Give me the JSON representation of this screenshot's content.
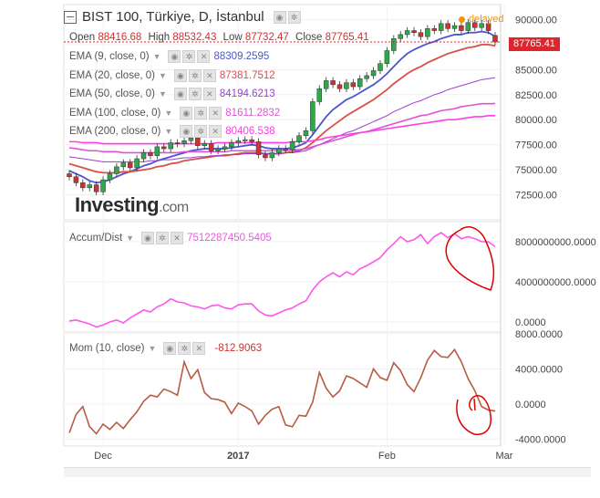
{
  "header": {
    "title": "BIST 100, Türkiye, D, İstanbul",
    "delayed": "delayed",
    "ohlc": {
      "open_label": "Open",
      "open": "88416.68",
      "high_label": "High",
      "high": "88532.43",
      "low_label": "Low",
      "low": "87732.47",
      "close_label": "Close",
      "close": "87765.41"
    },
    "last_price": "87765.41"
  },
  "indicators": {
    "ema": [
      {
        "label": "EMA (9, close, 0)",
        "value": "88309.2595",
        "color": "#4a56d1"
      },
      {
        "label": "EMA (20, close, 0)",
        "value": "87381.7512",
        "color": "#d8504a"
      },
      {
        "label": "EMA (50, close, 0)",
        "value": "84194.6213",
        "color": "#9b3fd0"
      },
      {
        "label": "EMA (100, close, 0)",
        "value": "81611.2832",
        "color": "#e052d8"
      },
      {
        "label": "EMA (200, close, 0)",
        "value": "80406.538",
        "color": "#ff3ce6"
      }
    ],
    "accum": {
      "label": "Accum/Dist",
      "value": "7512287450.5405",
      "color": "#ff55ee"
    },
    "mom": {
      "label": "Mom (10, close)",
      "value": "-812.9063",
      "color": "#b85a44"
    }
  },
  "watermark": {
    "brand": "Investing",
    "suffix": ".com"
  },
  "colors": {
    "up": "#2ea84a",
    "down": "#d0302f",
    "grid": "#eeeeee",
    "annotation": "#dd0000"
  },
  "chart_data": [
    {
      "type": "candlestick",
      "title": "BIST 100, Türkiye, D, İstanbul",
      "x_ticks": [
        "Dec",
        "2017",
        "Feb",
        "Mar"
      ],
      "ylim": [
        70000,
        91500
      ],
      "y_ticks": [
        72500,
        75000,
        77500,
        80000,
        82500,
        85000,
        87500,
        90000
      ],
      "closes": [
        74300,
        73700,
        73200,
        73500,
        72800,
        74000,
        74600,
        75300,
        75700,
        75200,
        76100,
        76700,
        76400,
        77300,
        77100,
        77700,
        77600,
        77900,
        78200,
        77400,
        77600,
        76900,
        77100,
        77300,
        77700,
        77900,
        78000,
        77800,
        76500,
        76200,
        76700,
        77100,
        77000,
        77800,
        78400,
        78900,
        81800,
        83100,
        83900,
        83500,
        83100,
        83700,
        83300,
        84100,
        84400,
        84900,
        85600,
        86900,
        88100,
        88500,
        88900,
        88700,
        88300,
        89100,
        88900,
        89600,
        89100,
        89400,
        88900,
        89700,
        89200,
        89600,
        88900,
        87765
      ],
      "series": [
        {
          "name": "EMA (9, close, 0)",
          "values": [
            74900,
            74600,
            74300,
            73900,
            73700,
            73800,
            74000,
            74300,
            74600,
            74800,
            75100,
            75400,
            75600,
            75900,
            76100,
            76300,
            76500,
            76700,
            76900,
            77000,
            77100,
            77100,
            77100,
            77100,
            77200,
            77300,
            77400,
            77500,
            77400,
            77200,
            77100,
            77100,
            77100,
            77200,
            77400,
            77700,
            78500,
            79400,
            80300,
            81000,
            81500,
            82000,
            82300,
            82700,
            83100,
            83500,
            84000,
            84600,
            85300,
            86000,
            86600,
            87000,
            87300,
            87600,
            87800,
            88100,
            88300,
            88500,
            88500,
            88700,
            88700,
            88800,
            88700,
            88310
          ]
        },
        {
          "name": "EMA (20, close, 0)",
          "values": [
            75600,
            75400,
            75200,
            75000,
            74800,
            74700,
            74700,
            74700,
            74800,
            74800,
            74900,
            75000,
            75100,
            75300,
            75400,
            75600,
            75700,
            75900,
            76000,
            76100,
            76200,
            76300,
            76400,
            76400,
            76500,
            76600,
            76700,
            76700,
            76700,
            76600,
            76600,
            76600,
            76700,
            76800,
            76900,
            77200,
            77700,
            78300,
            78900,
            79400,
            79900,
            80400,
            80800,
            81200,
            81600,
            82000,
            82500,
            83000,
            83600,
            84100,
            84600,
            85000,
            85300,
            85700,
            86000,
            86300,
            86600,
            86800,
            87000,
            87200,
            87300,
            87500,
            87500,
            87382
          ]
        },
        {
          "name": "EMA (50, close, 0)",
          "values": [
            76300,
            76200,
            76100,
            76000,
            75900,
            75800,
            75800,
            75800,
            75800,
            75800,
            75800,
            75800,
            75900,
            75900,
            76000,
            76000,
            76100,
            76200,
            76200,
            76300,
            76300,
            76400,
            76400,
            76500,
            76500,
            76500,
            76600,
            76600,
            76600,
            76600,
            76600,
            76600,
            76700,
            76700,
            76800,
            76900,
            77200,
            77500,
            77800,
            78100,
            78400,
            78700,
            78900,
            79200,
            79500,
            79800,
            80100,
            80400,
            80800,
            81100,
            81400,
            81700,
            81900,
            82200,
            82500,
            82700,
            83000,
            83200,
            83400,
            83600,
            83800,
            84000,
            84100,
            84194
          ]
        },
        {
          "name": "EMA (100, close, 0)",
          "values": [
            77200,
            77100,
            77000,
            76900,
            76900,
            76800,
            76800,
            76800,
            76700,
            76700,
            76700,
            76700,
            76700,
            76700,
            76700,
            76700,
            76700,
            76800,
            76800,
            76800,
            76800,
            76800,
            76800,
            76800,
            76900,
            76900,
            76900,
            76900,
            76900,
            76900,
            76900,
            76900,
            76900,
            77000,
            77000,
            77100,
            77300,
            77500,
            77700,
            77900,
            78100,
            78300,
            78500,
            78700,
            78800,
            79000,
            79200,
            79400,
            79600,
            79800,
            80000,
            80200,
            80400,
            80500,
            80700,
            80900,
            81000,
            81100,
            81300,
            81400,
            81500,
            81600,
            81600,
            81611
          ]
        },
        {
          "name": "EMA (200, close, 0)",
          "values": [
            77800,
            77800,
            77700,
            77700,
            77700,
            77600,
            77600,
            77600,
            77600,
            77600,
            77600,
            77600,
            77600,
            77600,
            77600,
            77600,
            77600,
            77600,
            77600,
            77600,
            77600,
            77600,
            77700,
            77700,
            77700,
            77700,
            77700,
            77700,
            77700,
            77700,
            77700,
            77700,
            77700,
            77800,
            77800,
            77800,
            77900,
            78000,
            78200,
            78300,
            78400,
            78500,
            78600,
            78700,
            78800,
            78900,
            79000,
            79100,
            79200,
            79300,
            79400,
            79500,
            79600,
            79700,
            79800,
            79900,
            80000,
            80000,
            80100,
            80200,
            80300,
            80300,
            80400,
            80407
          ]
        }
      ]
    },
    {
      "type": "line",
      "title": "Accum/Dist",
      "ylim": [
        -1000000000,
        10000000000
      ],
      "y_ticks": [
        0,
        4000000000,
        8000000000
      ],
      "y_tick_labels": [
        "0.0000",
        "4000000000.0000",
        "8000000000.0000"
      ],
      "series": [
        {
          "name": "Accum/Dist",
          "values": [
            100000000,
            200000000,
            0,
            -200000000,
            -500000000,
            -300000000,
            0,
            200000000,
            -100000000,
            400000000,
            800000000,
            1200000000,
            1000000000,
            1500000000,
            1800000000,
            2300000000,
            2000000000,
            1900000000,
            1600000000,
            1500000000,
            1300000000,
            1600000000,
            1700000000,
            1400000000,
            1300000000,
            1700000000,
            1800000000,
            1800000000,
            1100000000,
            700000000,
            600000000,
            900000000,
            1200000000,
            1400000000,
            1800000000,
            2100000000,
            3200000000,
            4000000000,
            4500000000,
            4900000000,
            4500000000,
            5000000000,
            4700000000,
            5300000000,
            5600000000,
            6000000000,
            6400000000,
            7200000000,
            7800000000,
            8500000000,
            8000000000,
            8200000000,
            8700000000,
            7800000000,
            8500000000,
            8900000000,
            8400000000,
            8800000000,
            8300000000,
            8500000000,
            8300000000,
            8000000000,
            8000000000,
            7512287450
          ]
        }
      ]
    },
    {
      "type": "line",
      "title": "Mom (10, close)",
      "ylim": [
        -4800,
        8000
      ],
      "y_ticks": [
        -4000,
        0,
        4000,
        8000
      ],
      "y_tick_labels": [
        "-4000.0000",
        "0.0000",
        "4000.0000",
        "8000.0000"
      ],
      "series": [
        {
          "name": "Mom (10, close)",
          "values": [
            -3300,
            -1200,
            -300,
            -2600,
            -3400,
            -2300,
            -2900,
            -2100,
            -2800,
            -1800,
            -900,
            300,
            1000,
            800,
            1700,
            1400,
            1000,
            4800,
            2900,
            3900,
            1300,
            600,
            500,
            200,
            -1100,
            100,
            -300,
            -800,
            -2300,
            -1300,
            -600,
            -300,
            -2400,
            -2600,
            -1300,
            -1400,
            200,
            3600,
            1800,
            800,
            1500,
            3200,
            2900,
            2400,
            1900,
            4000,
            3000,
            2700,
            4700,
            3800,
            2200,
            1400,
            3000,
            5000,
            6100,
            5400,
            5300,
            6200,
            4800,
            2900,
            1500,
            -300,
            -700,
            -813
          ]
        }
      ]
    }
  ]
}
